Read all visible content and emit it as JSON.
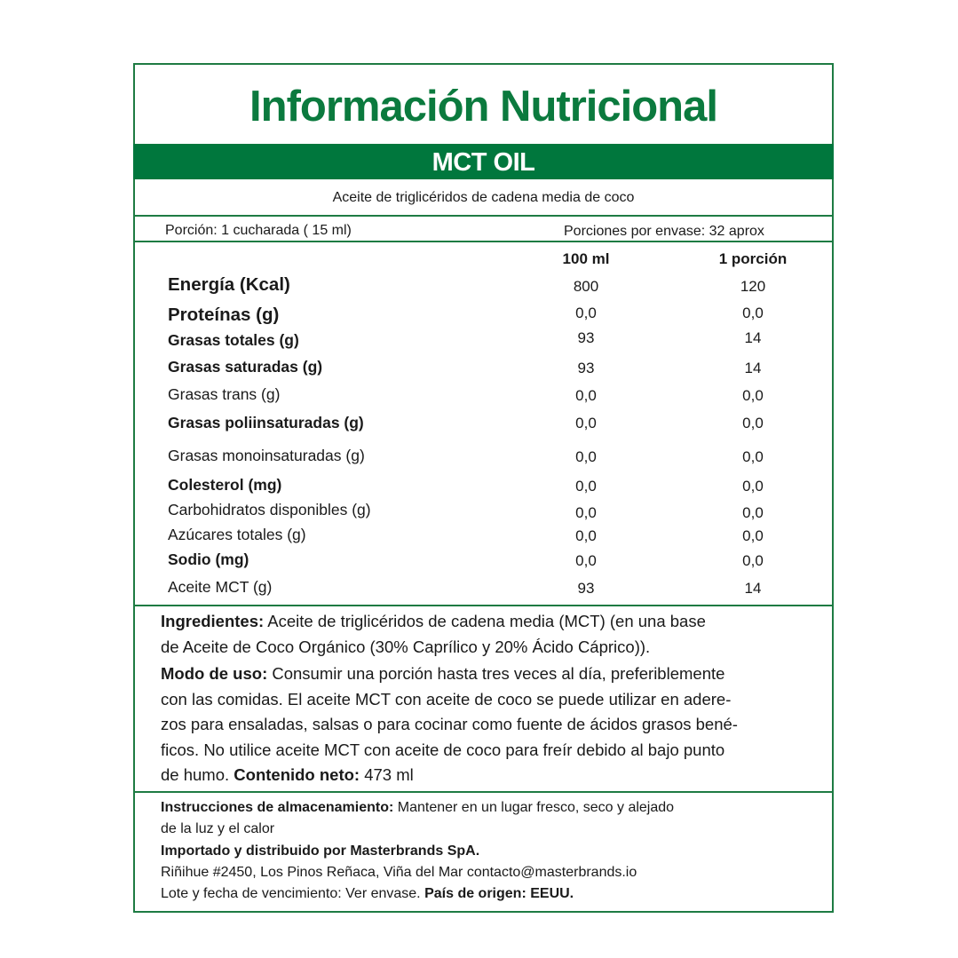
{
  "colors": {
    "brand_green": "#00773D",
    "text": "#1A1A1A"
  },
  "title": "Información Nutricional",
  "product": "MCT OIL",
  "description": "Aceite de triglicéridos de cadena media de coco",
  "serving": {
    "portion": "Porción:  1 cucharada (    15 ml)",
    "per_container": "Porciones por envase: 32 aprox"
  },
  "columns": {
    "col1": "100 ml",
    "col2": "1 porción"
  },
  "nutrients": [
    {
      "label": "Energía (Kcal)",
      "per100": "800",
      "perPortion": "120",
      "style": "big"
    },
    {
      "label": "Proteínas (g)",
      "per100": "0,0",
      "perPortion": "0,0",
      "style": "big"
    },
    {
      "label": "Grasas totales (g)",
      "per100": "93",
      "perPortion": "14",
      "style": "bold"
    },
    {
      "label": "Grasas saturadas (g)",
      "per100": "93",
      "perPortion": "14",
      "style": "bold"
    },
    {
      "label": "Grasas trans (g)",
      "per100": "0,0",
      "perPortion": "0,0",
      "style": "normal"
    },
    {
      "label": "Grasas poliinsaturadas (g)",
      "per100": "0,0",
      "perPortion": "0,0",
      "style": "bold"
    },
    {
      "label": "Grasas monoinsaturadas (g)",
      "per100": "0,0",
      "perPortion": "0,0",
      "style": "normal"
    },
    {
      "label": "Colesterol (mg)",
      "per100": "0,0",
      "perPortion": "0,0",
      "style": "bold"
    },
    {
      "label": "Carbohidratos disponibles (g)",
      "per100": "0,0",
      "perPortion": "0,0",
      "style": "normal"
    },
    {
      "label": "Azúcares totales (g)",
      "per100": "0,0",
      "perPortion": "0,0",
      "style": "normal"
    },
    {
      "label": "Sodio (mg)",
      "per100": "0,0",
      "perPortion": "0,0",
      "style": "bold"
    },
    {
      "label": "Aceite MCT (g)",
      "per100": "93",
      "perPortion": "14",
      "style": "normal"
    }
  ],
  "ingredients": {
    "label": "Ingredientes:",
    "lines": [
      " Aceite de triglicéridos de cadena media (MCT) (en una base",
      "de Aceite de Coco Orgánico (30% Caprílico y 20% Ácido Cáprico))."
    ]
  },
  "usage": {
    "label": "Modo de uso:",
    "lines": [
      " Consumir una porción hasta tres veces al día, preferiblemente",
      "con las comidas. El aceite MCT con aceite de coco se puede utilizar en adere-",
      "zos para ensaladas, salsas o para cocinar como fuente de ácidos grasos bené-",
      "ficos. No utilice aceite MCT con aceite de coco para freír debido al bajo punto",
      "de humo. "
    ],
    "net_label": "Contenido neto:",
    "net_value": " 473 ml"
  },
  "storage": {
    "label": "Instrucciones de almacenamiento:",
    "text": "  Mantener en un lugar fresco, seco y alejado",
    "text2": " de la luz y el calor"
  },
  "importer": "Importado y distribuido por Masterbrands SpA.",
  "address": "Riñihue #2450, Los Pinos Reñaca, Viña del Mar contacto@masterbrands.io",
  "lot": "Lote y fecha de vencimiento: Ver envase.  ",
  "origin": "País de origen: EEUU."
}
